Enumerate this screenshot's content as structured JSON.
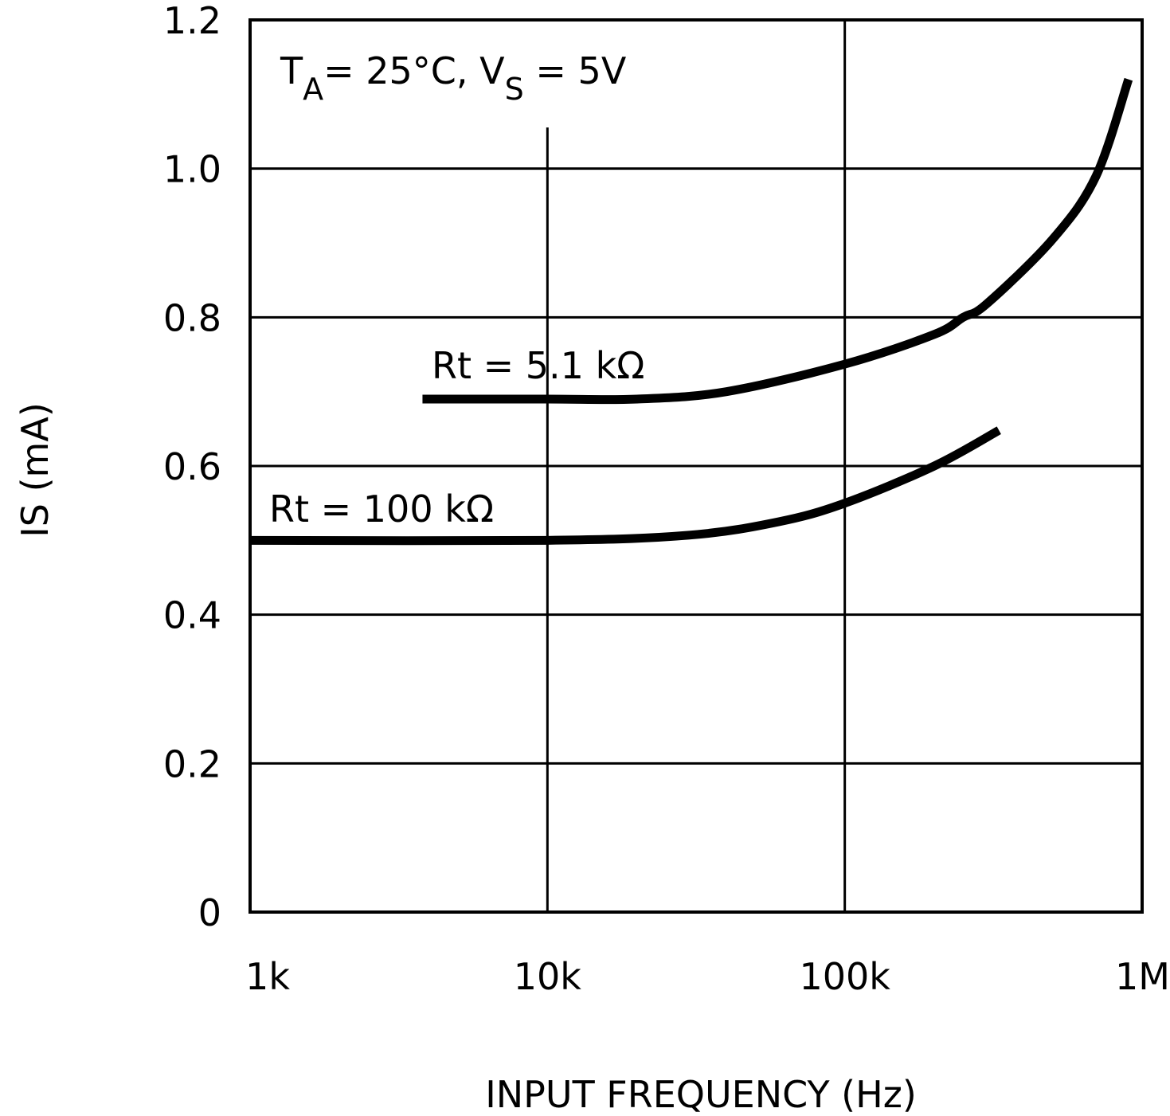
{
  "chart_data": {
    "type": "line",
    "title": "",
    "annotation": {
      "main": "T",
      "sub1": "A",
      "mid": "= 25°C, V",
      "sub2": "S",
      "end": " = 5V"
    },
    "xlabel": "INPUT FREQUENCY (Hz)",
    "ylabel": "IS (mA)",
    "xscale": "log",
    "xlim": [
      1000,
      1000000
    ],
    "ylim": [
      0,
      1.2
    ],
    "grid": true,
    "x_ticks": [
      {
        "value": 1000,
        "label": "1k"
      },
      {
        "value": 10000,
        "label": "10k"
      },
      {
        "value": 100000,
        "label": "100k"
      },
      {
        "value": 1000000,
        "label": "1M"
      }
    ],
    "y_ticks": [
      {
        "value": 0,
        "label": "0"
      },
      {
        "value": 0.2,
        "label": "0.2"
      },
      {
        "value": 0.4,
        "label": "0.4"
      },
      {
        "value": 0.6,
        "label": "0.6"
      },
      {
        "value": 0.8,
        "label": "0.8"
      },
      {
        "value": 1.0,
        "label": "1.0"
      },
      {
        "value": 1.2,
        "label": "1.2"
      }
    ],
    "series": [
      {
        "name": "Rt = 5.1 kΩ",
        "color": "#000000",
        "x": [
          3800,
          10000,
          20000,
          40000,
          100000,
          200000,
          250000,
          300000,
          500000,
          700000,
          900000
        ],
        "y": [
          0.69,
          0.69,
          0.69,
          0.7,
          0.737,
          0.777,
          0.8,
          0.818,
          0.905,
          0.99,
          1.12
        ]
      },
      {
        "name": "Rt = 100 kΩ",
        "color": "#000000",
        "x": [
          1000,
          10000,
          30000,
          60000,
          100000,
          200000,
          330000
        ],
        "y": [
          0.5,
          0.5,
          0.507,
          0.525,
          0.55,
          0.6,
          0.648
        ]
      }
    ]
  }
}
